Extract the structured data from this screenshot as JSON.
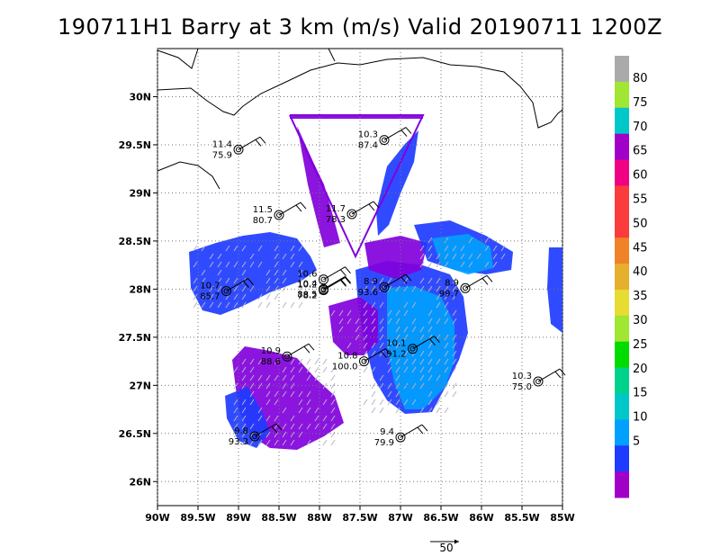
{
  "title": "190711H1 Barry at 3 km (m/s) Valid 20190711 1200Z",
  "map": {
    "lon_range": [
      -90,
      -85
    ],
    "lat_range": [
      25.75,
      30.5
    ],
    "lat_ticks": [
      {
        "value": 30,
        "label": "30N"
      },
      {
        "value": 29.5,
        "label": "29.5N"
      },
      {
        "value": 29,
        "label": "29N"
      },
      {
        "value": 28.5,
        "label": "28.5N"
      },
      {
        "value": 28,
        "label": "28N"
      },
      {
        "value": 27.5,
        "label": "27.5N"
      },
      {
        "value": 27,
        "label": "27N"
      },
      {
        "value": 26.5,
        "label": "26.5N"
      },
      {
        "value": 26,
        "label": "26N"
      }
    ],
    "lon_ticks": [
      {
        "value": -90,
        "label": "90W"
      },
      {
        "value": -89.5,
        "label": "89.5W"
      },
      {
        "value": -89,
        "label": "89W"
      },
      {
        "value": -88.5,
        "label": "88.5W"
      },
      {
        "value": -88,
        "label": "88W"
      },
      {
        "value": -87.5,
        "label": "87.5W"
      },
      {
        "value": -87,
        "label": "87W"
      },
      {
        "value": -86.5,
        "label": "86.5W"
      },
      {
        "value": -86,
        "label": "86W"
      },
      {
        "value": -85.5,
        "label": "85.5W"
      },
      {
        "value": -85,
        "label": "85W"
      }
    ],
    "grid": true,
    "grid_style": "dotted"
  },
  "colorbar": {
    "levels": [
      {
        "label": "",
        "color": "#a000c8"
      },
      {
        "label": "5",
        "color": "#8200dc"
      },
      {
        "label": "",
        "color": "#1e3cff"
      },
      {
        "label": "10",
        "color": "#1e3cff"
      },
      {
        "label": "",
        "color": "#00a0ff"
      },
      {
        "label": "15",
        "color": "#00a0ff"
      },
      {
        "label": "",
        "color": "#00c8c8"
      },
      {
        "label": "20",
        "color": "#00c8c8"
      },
      {
        "label": "",
        "color": "#00d28c"
      },
      {
        "label": "25",
        "color": "#00dc00"
      },
      {
        "label": "",
        "color": "#00dc00"
      },
      {
        "label": "30",
        "color": "#a0e632"
      },
      {
        "label": "",
        "color": "#e6dc32"
      },
      {
        "label": "35",
        "color": "#e6af2d"
      },
      {
        "label": "",
        "color": "#f08228"
      },
      {
        "label": "40",
        "color": "#fa3c3c"
      },
      {
        "label": "",
        "color": "#f00082"
      },
      {
        "label": "45",
        "color": "#a000c8"
      },
      {
        "label": "",
        "color": "#00c8c8"
      },
      {
        "label": "50",
        "color": "#a0e632"
      },
      {
        "label": "",
        "color": "#aaaaaa"
      }
    ],
    "bands": [
      {
        "color": "#a000c8",
        "label": "5"
      },
      {
        "color": "#1e3cff",
        "label": "10"
      },
      {
        "color": "#00a0ff",
        "label": "15"
      },
      {
        "color": "#00c8c8",
        "label": "20"
      },
      {
        "color": "#00d28c",
        "label": "25"
      },
      {
        "color": "#00dc00",
        "label": "30"
      },
      {
        "color": "#a0e632",
        "label": "35"
      },
      {
        "color": "#e6dc32",
        "label": "40"
      },
      {
        "color": "#e6af2d",
        "label": "45"
      },
      {
        "color": "#f08228",
        "label": "50"
      },
      {
        "color": "#fa3c3c",
        "label": "55"
      },
      {
        "color": "#fa3c3c",
        "label": "60"
      },
      {
        "color": "#f00082",
        "label": "65"
      },
      {
        "color": "#a000c8",
        "label": "70"
      },
      {
        "color": "#00c8c8",
        "label": "75"
      },
      {
        "color": "#a0e632",
        "label": "80"
      },
      {
        "color": "#aaaaaa",
        "label": ""
      }
    ]
  },
  "observations": [
    {
      "lon": -89.0,
      "lat": 29.45,
      "speed": "11.4",
      "dir": "75.9"
    },
    {
      "lon": -87.2,
      "lat": 29.55,
      "speed": "10.3",
      "dir": "87.4"
    },
    {
      "lon": -88.5,
      "lat": 28.77,
      "speed": "11.5",
      "dir": "80.7"
    },
    {
      "lon": -87.6,
      "lat": 28.78,
      "speed": "11.7",
      "dir": "78.3"
    },
    {
      "lon": -89.15,
      "lat": 27.98,
      "speed": "10.7",
      "dir": "85.7"
    },
    {
      "lon": -87.95,
      "lat": 28.1,
      "speed": "10.6",
      "dir": ""
    },
    {
      "lon": -87.95,
      "lat": 28.0,
      "speed": "10.4",
      "dir": "88.5"
    },
    {
      "lon": -87.95,
      "lat": 27.99,
      "speed": "10.2",
      "dir": "78.2"
    },
    {
      "lon": -87.2,
      "lat": 28.02,
      "speed": "8.9",
      "dir": "93.6"
    },
    {
      "lon": -86.2,
      "lat": 28.01,
      "speed": "8.9",
      "dir": "99.7"
    },
    {
      "lon": -86.85,
      "lat": 27.38,
      "speed": "10.1",
      "dir": "91.2"
    },
    {
      "lon": -88.4,
      "lat": 27.3,
      "speed": "10.9",
      "dir": "88.6"
    },
    {
      "lon": -87.45,
      "lat": 27.25,
      "speed": "10.8",
      "dir": "100.0"
    },
    {
      "lon": -85.3,
      "lat": 27.04,
      "speed": "10.3",
      "dir": "75.0"
    },
    {
      "lon": -88.8,
      "lat": 26.47,
      "speed": "9.8",
      "dir": "93.3"
    },
    {
      "lon": -87.0,
      "lat": 26.46,
      "speed": "9.4",
      "dir": "79.9"
    }
  ],
  "reference_vector": {
    "label": "50"
  }
}
